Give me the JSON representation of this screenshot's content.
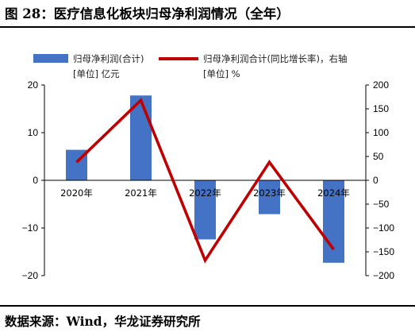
{
  "title": "图 28：医疗信息化板块归母净利润情况（全年）",
  "source": "数据来源：Wind，华龙证券研究所",
  "colors": {
    "bar": "#4472C4",
    "line": "#C00000",
    "axis": "#000000"
  },
  "chart_data": {
    "type": "bar",
    "categories": [
      "2020年",
      "2021年",
      "2022年",
      "2023年",
      "2024年"
    ],
    "series": [
      {
        "name": "归母净利润(合计)",
        "unit": "[单位] 亿元",
        "type": "bar",
        "axis": "left",
        "values": [
          6.4,
          17.8,
          -12.4,
          -7.1,
          -17.3
        ]
      },
      {
        "name": "归母净利润合计(同比增长率)，右轴",
        "unit": "[单位] %",
        "type": "line",
        "axis": "right",
        "values": [
          38,
          168,
          -168,
          38,
          -145
        ]
      }
    ],
    "y_left": {
      "ylim": [
        -20,
        20
      ],
      "ticks": [
        20,
        10,
        0,
        -10,
        -20
      ],
      "tick_labels": [
        "20",
        "10",
        "0",
        "−10",
        "−20"
      ]
    },
    "y_right": {
      "ylim": [
        -200,
        200
      ],
      "ticks": [
        200,
        150,
        100,
        50,
        0,
        -50,
        -100,
        -150,
        -200
      ],
      "tick_labels": [
        "200",
        "150",
        "100",
        "50",
        "0",
        "−50",
        "−100",
        "−150",
        "−200"
      ]
    },
    "legend_position": "top",
    "grid": false
  }
}
